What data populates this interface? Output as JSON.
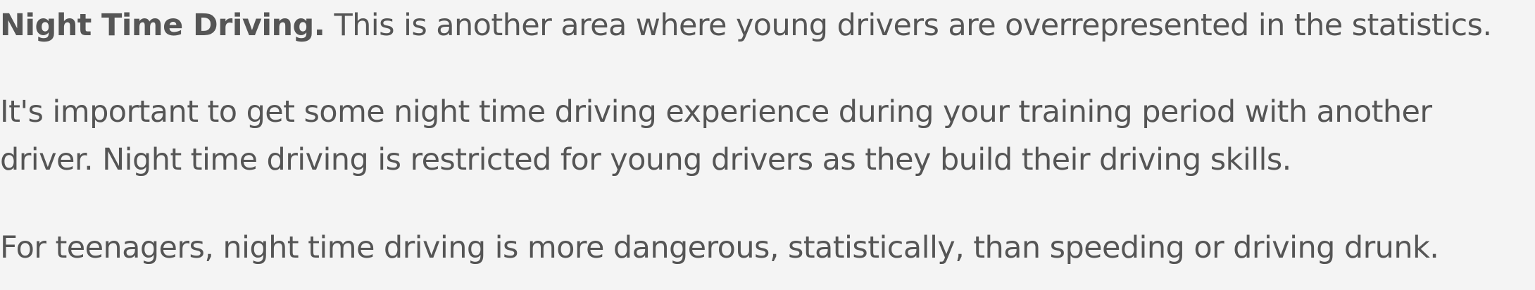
{
  "paragraphs": {
    "night_driving": {
      "lead": "Night Time Driving.",
      "text": "This is another area where young drivers are overrepresented in the statistics."
    },
    "experience": {
      "line1": "It's important to get some night time driving experience during your training period with another",
      "line2": "driver. Night time driving is restricted for young drivers as they build their driving skills."
    },
    "teenagers": {
      "text": "For teenagers, night time driving is more dangerous, statistically, than speeding or driving drunk."
    }
  }
}
